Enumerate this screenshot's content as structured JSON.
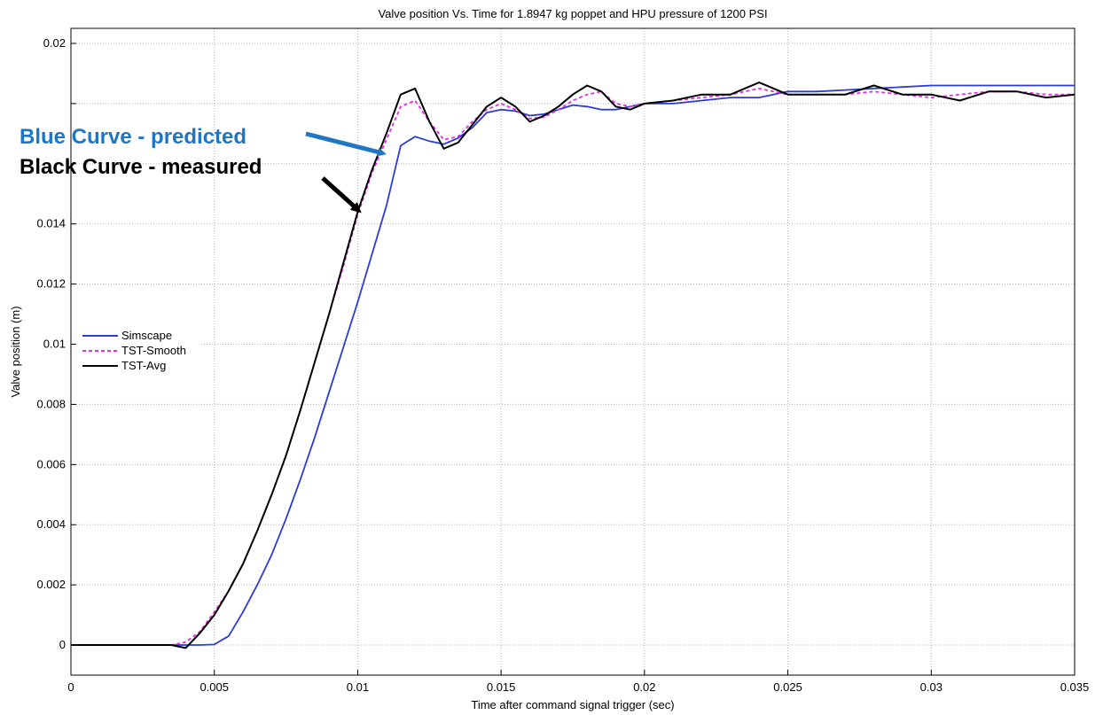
{
  "chart_data": {
    "type": "line",
    "title": "Valve position Vs. Time for 1.8947 kg poppet and HPU pressure of 1200 PSI",
    "xlabel": "Time after command signal trigger (sec)",
    "ylabel": "Valve position (m)",
    "xlim": [
      0,
      0.035
    ],
    "ylim": [
      -0.001,
      0.0205
    ],
    "x_ticks": [
      0,
      0.005,
      0.01,
      0.015,
      0.02,
      0.025,
      0.03,
      0.035
    ],
    "x_tick_labels": [
      "0",
      "0.005",
      "0.01",
      "0.015",
      "0.02",
      "0.025",
      "0.03",
      "0.035"
    ],
    "y_ticks": [
      0,
      0.002,
      0.004,
      0.006,
      0.008,
      0.01,
      0.012,
      0.014,
      0.02
    ],
    "y_tick_labels": [
      "0",
      "0.002",
      "0.004",
      "0.006",
      "0.008",
      "0.01",
      "0.012",
      "0.014",
      "0.02"
    ],
    "grid": true,
    "legend_position": "left",
    "series": [
      {
        "name": "Simscape",
        "color": "#2b3bd6",
        "style": "solid",
        "x": [
          0,
          0.0045,
          0.005,
          0.0055,
          0.006,
          0.0065,
          0.007,
          0.0075,
          0.008,
          0.0085,
          0.009,
          0.0095,
          0.01,
          0.0105,
          0.011,
          0.0115,
          0.012,
          0.0125,
          0.013,
          0.0135,
          0.014,
          0.0145,
          0.015,
          0.0155,
          0.016,
          0.0165,
          0.017,
          0.0175,
          0.018,
          0.0185,
          0.019,
          0.0195,
          0.02,
          0.021,
          0.022,
          0.023,
          0.024,
          0.025,
          0.026,
          0.027,
          0.028,
          0.029,
          0.03,
          0.031,
          0.032,
          0.033,
          0.034,
          0.035
        ],
        "values": [
          0,
          0,
          2e-05,
          0.0003,
          0.0011,
          0.002,
          0.003,
          0.0042,
          0.0055,
          0.0069,
          0.0084,
          0.0099,
          0.0114,
          0.013,
          0.0146,
          0.0166,
          0.0169,
          0.01675,
          0.01665,
          0.01685,
          0.0172,
          0.0177,
          0.0178,
          0.01775,
          0.0176,
          0.01765,
          0.0178,
          0.01795,
          0.0179,
          0.0178,
          0.0178,
          0.0179,
          0.018,
          0.018,
          0.0181,
          0.0182,
          0.0182,
          0.0184,
          0.0184,
          0.01845,
          0.0185,
          0.01855,
          0.0186,
          0.0186,
          0.0186,
          0.0186,
          0.0186,
          0.0186
        ]
      },
      {
        "name": "TST-Smooth",
        "color": "#e22fe2",
        "style": "dashed",
        "x": [
          0,
          0.001,
          0.002,
          0.003,
          0.0035,
          0.004,
          0.0045,
          0.005,
          0.0055,
          0.006,
          0.0065,
          0.007,
          0.0075,
          0.008,
          0.0085,
          0.009,
          0.0095,
          0.01,
          0.0105,
          0.011,
          0.0115,
          0.012,
          0.0125,
          0.013,
          0.0135,
          0.014,
          0.0145,
          0.015,
          0.0155,
          0.016,
          0.0165,
          0.017,
          0.0175,
          0.018,
          0.0185,
          0.019,
          0.0195,
          0.02,
          0.021,
          0.022,
          0.023,
          0.024,
          0.025,
          0.026,
          0.027,
          0.028,
          0.029,
          0.03,
          0.031,
          0.032,
          0.033,
          0.034,
          0.035
        ],
        "values": [
          0,
          0,
          0,
          0,
          0,
          0.0001,
          0.00045,
          0.0011,
          0.0018,
          0.0027,
          0.0038,
          0.005,
          0.0063,
          0.0078,
          0.0094,
          0.011,
          0.0126,
          0.0143,
          0.0157,
          0.0168,
          0.0179,
          0.0181,
          0.0174,
          0.0168,
          0.0169,
          0.0174,
          0.0178,
          0.018,
          0.0178,
          0.0175,
          0.01755,
          0.0178,
          0.0181,
          0.0183,
          0.0184,
          0.018,
          0.0179,
          0.018,
          0.0181,
          0.0182,
          0.0183,
          0.0185,
          0.0183,
          0.0183,
          0.0183,
          0.0184,
          0.0183,
          0.0182,
          0.0183,
          0.0184,
          0.0184,
          0.0183,
          0.0183
        ]
      },
      {
        "name": "TST-Avg",
        "color": "#000000",
        "style": "solid",
        "x": [
          0,
          0.001,
          0.002,
          0.003,
          0.0035,
          0.004,
          0.0045,
          0.005,
          0.0055,
          0.006,
          0.0065,
          0.007,
          0.0075,
          0.008,
          0.0085,
          0.009,
          0.0095,
          0.01,
          0.0105,
          0.011,
          0.0115,
          0.012,
          0.0125,
          0.013,
          0.0135,
          0.014,
          0.0145,
          0.015,
          0.0155,
          0.016,
          0.0165,
          0.017,
          0.0175,
          0.018,
          0.0185,
          0.019,
          0.0195,
          0.02,
          0.021,
          0.022,
          0.023,
          0.024,
          0.025,
          0.026,
          0.027,
          0.028,
          0.029,
          0.03,
          0.031,
          0.032,
          0.033,
          0.034,
          0.035
        ],
        "values": [
          0,
          0,
          0,
          0,
          0,
          -0.0001,
          0.0004,
          0.001,
          0.0018,
          0.0027,
          0.0038,
          0.005,
          0.0063,
          0.0078,
          0.0094,
          0.011,
          0.0127,
          0.0144,
          0.0158,
          0.017,
          0.0183,
          0.0185,
          0.0174,
          0.0165,
          0.0167,
          0.0173,
          0.0179,
          0.0182,
          0.0179,
          0.0174,
          0.0176,
          0.0179,
          0.0183,
          0.0186,
          0.0184,
          0.0179,
          0.0178,
          0.018,
          0.0181,
          0.0183,
          0.0183,
          0.0187,
          0.0183,
          0.0183,
          0.0183,
          0.0186,
          0.0183,
          0.0183,
          0.0181,
          0.0184,
          0.0184,
          0.0182,
          0.0183
        ]
      }
    ],
    "annotations": [
      {
        "text": "Blue Curve - predicted",
        "color": "#1f77c4",
        "target_x": 0.011,
        "target_y": 0.0168
      },
      {
        "text": "Black Curve - measured",
        "color": "#000000",
        "target_x": 0.0102,
        "target_y": 0.0151
      }
    ]
  }
}
